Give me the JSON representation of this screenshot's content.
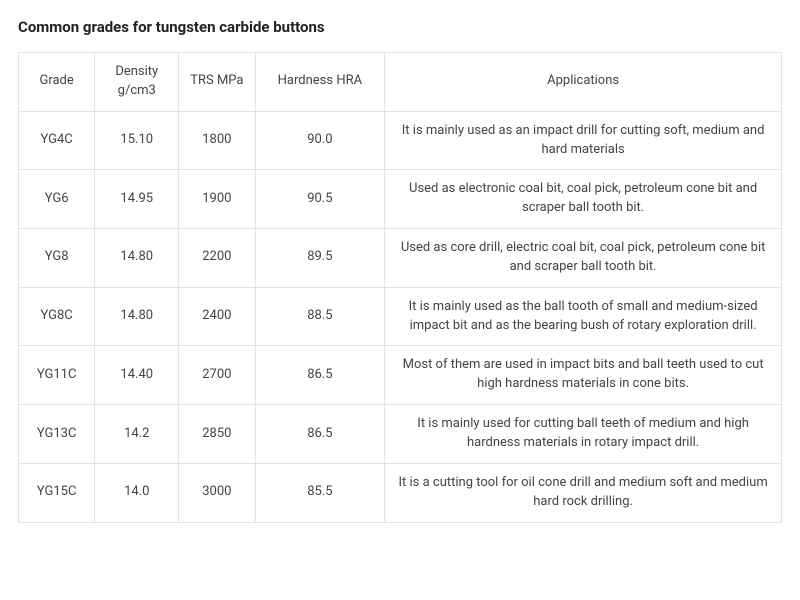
{
  "title": "Common grades for tungsten carbide buttons",
  "table": {
    "type": "table",
    "background_color": "#ffffff",
    "border_color": "#e2e5e8",
    "text_color": "#444444",
    "header_fontsize": 13,
    "cell_fontsize": 13,
    "columns": [
      {
        "key": "grade",
        "label": "Grade",
        "width_pct": 10,
        "align": "center"
      },
      {
        "key": "density",
        "label": "Density g/cm3",
        "width_pct": 11,
        "align": "center"
      },
      {
        "key": "trs",
        "label": "TRS MPa",
        "width_pct": 10,
        "align": "center"
      },
      {
        "key": "hardness",
        "label": "Hardness HRA",
        "width_pct": 17,
        "align": "center"
      },
      {
        "key": "applications",
        "label": "Applications",
        "width_pct": 52,
        "align": "center"
      }
    ],
    "rows": [
      {
        "grade": "YG4C",
        "density": "15.10",
        "trs": "1800",
        "hardness": "90.0",
        "applications": "It is mainly used as an impact drill for cutting soft, medium and hard materials"
      },
      {
        "grade": "YG6",
        "density": "14.95",
        "trs": "1900",
        "hardness": "90.5",
        "applications": "Used as electronic coal bit, coal pick, petroleum cone bit and scraper ball tooth bit."
      },
      {
        "grade": "YG8",
        "density": "14.80",
        "trs": "2200",
        "hardness": "89.5",
        "applications": "Used as core drill, electric coal bit, coal pick, petroleum cone bit and scraper ball tooth bit."
      },
      {
        "grade": "YG8C",
        "density": "14.80",
        "trs": "2400",
        "hardness": "88.5",
        "applications": "It is mainly used as the ball tooth of small and medium-sized impact bit and as the bearing bush of rotary exploration drill."
      },
      {
        "grade": "YG11C",
        "density": "14.40",
        "trs": "2700",
        "hardness": "86.5",
        "applications": "Most of them are used in impact bits and ball teeth used to cut high hardness materials in cone bits."
      },
      {
        "grade": "YG13C",
        "density": "14.2",
        "trs": "2850",
        "hardness": "86.5",
        "applications": "It is mainly used for cutting ball teeth of medium and high hardness materials in rotary impact drill."
      },
      {
        "grade": "YG15C",
        "density": "14.0",
        "trs": "3000",
        "hardness": "85.5",
        "applications": "It is a cutting tool for oil cone drill and medium soft and medium hard rock drilling."
      }
    ]
  }
}
